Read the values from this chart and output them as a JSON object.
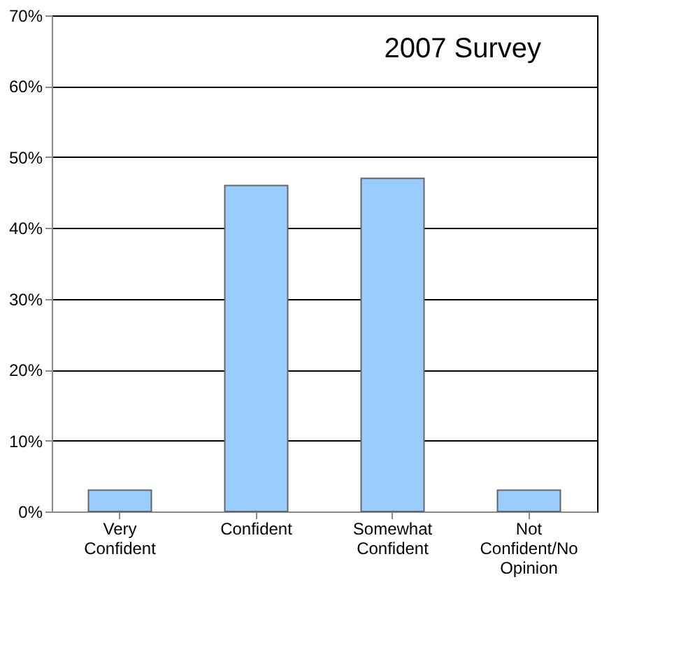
{
  "chart_data": {
    "type": "bar",
    "title": "2007 Survey",
    "categories": [
      "Very Confident",
      "Confident",
      "Somewhat Confident",
      "Not Confident/No Opinion"
    ],
    "values": [
      3,
      46,
      47,
      3
    ],
    "color": "#99ccff",
    "ylim": [
      0,
      70
    ],
    "yticks": [
      {
        "value": 0,
        "label": "0%"
      },
      {
        "value": 10,
        "label": "10%"
      },
      {
        "value": 20,
        "label": "20%"
      },
      {
        "value": 30,
        "label": "30%"
      },
      {
        "value": 40,
        "label": "40%"
      },
      {
        "value": 50,
        "label": "50%"
      },
      {
        "value": 60,
        "label": "60%"
      },
      {
        "value": 70,
        "label": "70%"
      }
    ],
    "grid": "y"
  }
}
